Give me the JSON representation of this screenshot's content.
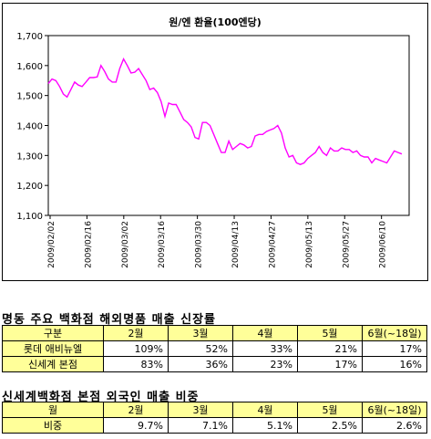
{
  "chart_data": {
    "type": "line",
    "title": "원/엔 환율(100엔당)",
    "ylim": [
      1100,
      1700
    ],
    "y_ticks": [
      "1,700",
      "1,600",
      "1,500",
      "1,400",
      "1,300",
      "1,200",
      "1,100"
    ],
    "x_tick_labels": [
      "2009/02/02",
      "2009/02/16",
      "2009/03/02",
      "2009/03/16",
      "2009/03/30",
      "2009/04/13",
      "2009/04/27",
      "2009/05/13",
      "2009/05/27",
      "2009/06/10"
    ],
    "grid": false,
    "line_color": "#ff00ff",
    "series": [
      {
        "values": [
          1540,
          1555,
          1550,
          1530,
          1505,
          1495,
          1520,
          1545,
          1535,
          1530,
          1545,
          1560,
          1560,
          1562,
          1600,
          1580,
          1555,
          1545,
          1545,
          1590,
          1622,
          1600,
          1575,
          1578,
          1590,
          1570,
          1550,
          1520,
          1525,
          1510,
          1480,
          1430,
          1475,
          1470,
          1470,
          1445,
          1420,
          1410,
          1395,
          1360,
          1355,
          1410,
          1410,
          1400,
          1370,
          1340,
          1310,
          1310,
          1348,
          1320,
          1330,
          1340,
          1335,
          1325,
          1330,
          1365,
          1370,
          1370,
          1380,
          1385,
          1390,
          1400,
          1375,
          1325,
          1295,
          1300,
          1275,
          1270,
          1275,
          1290,
          1300,
          1310,
          1330,
          1310,
          1300,
          1325,
          1315,
          1315,
          1325,
          1320,
          1320,
          1310,
          1315,
          1300,
          1295,
          1295,
          1275,
          1290,
          1285,
          1280,
          1275,
          1295,
          1315,
          1310,
          1305
        ]
      }
    ]
  },
  "table1": {
    "title": "명동 주요 백화점 해외명품 매출 신장률",
    "headers": [
      "구분",
      "2월",
      "3월",
      "4월",
      "5월",
      "6월(~18일)"
    ],
    "rows": [
      {
        "label": "롯데 애비뉴엘",
        "values": [
          "109%",
          "52%",
          "33%",
          "21%",
          "17%"
        ]
      },
      {
        "label": "신세계 본점",
        "values": [
          "83%",
          "36%",
          "23%",
          "17%",
          "16%"
        ]
      }
    ]
  },
  "table2": {
    "title": "신세계백화점 본점 외국인 매출 비중",
    "headers": [
      "월",
      "2월",
      "3월",
      "4월",
      "5월",
      "6월(~18일)"
    ],
    "rows": [
      {
        "label": "비중",
        "values": [
          "9.7%",
          "7.1%",
          "5.1%",
          "2.5%",
          "2.6%"
        ]
      }
    ]
  }
}
